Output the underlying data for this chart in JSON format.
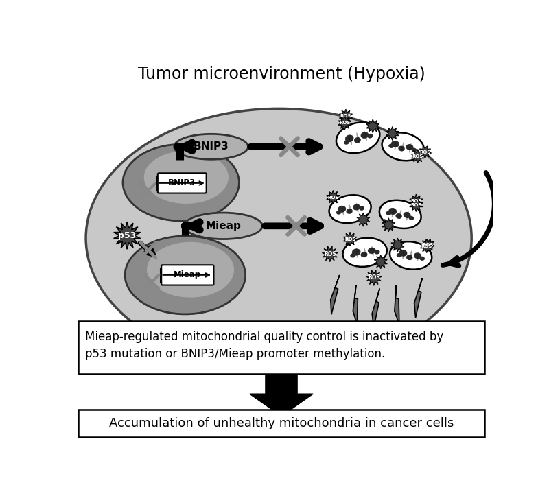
{
  "title": "Tumor microenvironment (Hypoxia)",
  "title_fontsize": 17,
  "box1_text_line1": "Mieap-regulated mitochondrial quality control is inactivated by",
  "box1_text_line2": "p53 mutation or BNIP3/Mieap promoter methylation.",
  "box2_text": "Accumulation of unhealthy mitochondria in cancer cells",
  "bg_color": "#ffffff",
  "cell_fill": "#c8c8c8",
  "cell_edge": "#444444",
  "nucleus_fill": "#909090",
  "nucleus_edge": "#333333",
  "protein_oval_fill": "#b0b0b0",
  "protein_oval_edge": "#333333",
  "starburst_fill": "#444444",
  "lightning_fill": "#666666",
  "mito_fill": "#ffffff",
  "mito_inner_fill": "#333333"
}
